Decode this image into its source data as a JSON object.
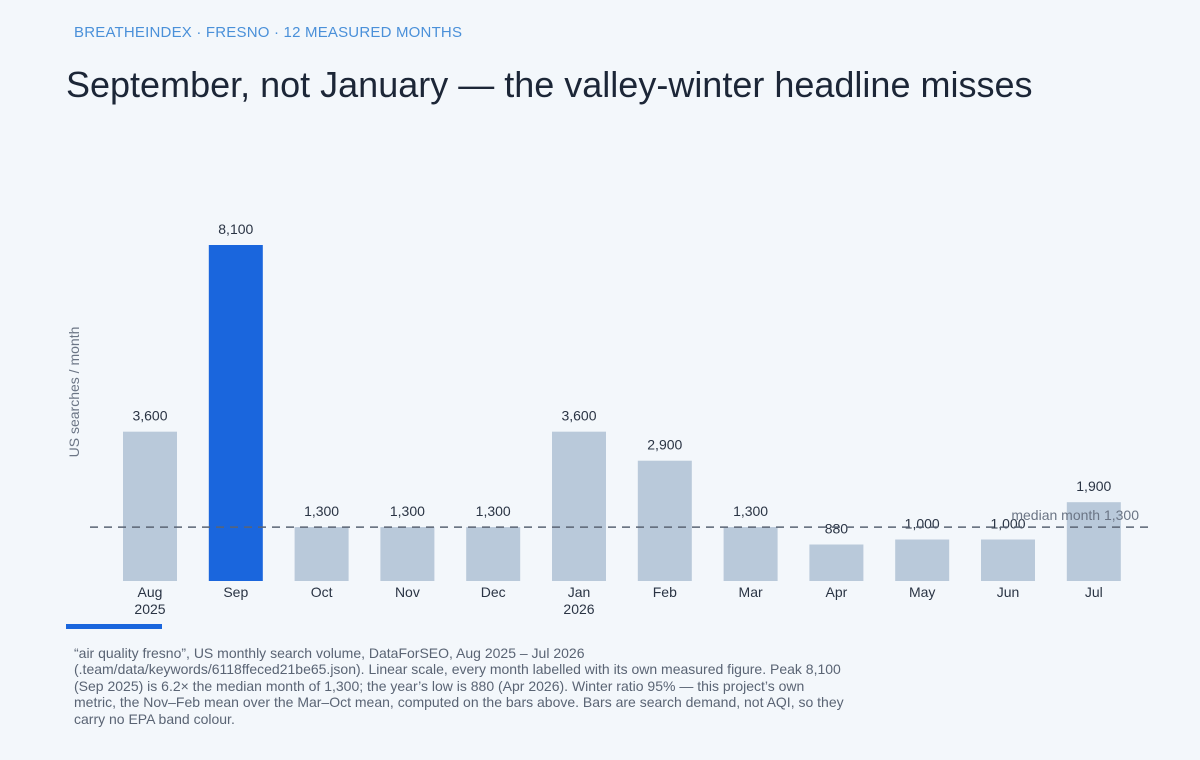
{
  "kicker": "BREATHEINDEX · FRESNO · 12 MEASURED MONTHS",
  "title": "September, not January — the valley-winter headline misses",
  "colors": {
    "highlight": "#1a66dd",
    "bar": "#b9c9da",
    "median_line": "#5a6474",
    "accent": "#1a66dd"
  },
  "chart_data": {
    "type": "bar",
    "categories": [
      "Aug",
      "Sep",
      "Oct",
      "Nov",
      "Dec",
      "Jan",
      "Feb",
      "Mar",
      "Apr",
      "May",
      "Jun",
      "Jul"
    ],
    "year_labels": [
      "2025",
      "",
      "",
      "",
      "",
      "2026",
      "",
      "",
      "",
      "",
      "",
      ""
    ],
    "values": [
      3600,
      8100,
      1300,
      1300,
      1300,
      3600,
      2900,
      1300,
      880,
      1000,
      1000,
      1900
    ],
    "data_labels": [
      "3,600",
      "8,100",
      "1,300",
      "1,300",
      "1,300",
      "3,600",
      "2,900",
      "1,300",
      "880",
      "1,000",
      "1,000",
      "1,900"
    ],
    "highlight_index": 1,
    "ylabel": "US searches / month",
    "ylim": [
      0,
      8100
    ],
    "scale": "linear",
    "grid": false,
    "median": {
      "value": 1300,
      "label": "median month  1,300"
    }
  },
  "footnote": [
    "“air quality fresno”, US monthly search volume, DataForSEO, Aug 2025 – Jul 2026",
    "(.team/data/keywords/6118ffeced21be65.json). Linear scale, every month labelled with its own measured figure. Peak 8,100",
    "(Sep 2025) is 6.2× the median month of 1,300; the year’s low is 880 (Apr 2026). Winter ratio 95% — this project’s own",
    "metric, the Nov–Feb mean over the Mar–Oct mean, computed on the bars above. Bars are search demand, not AQI, so they",
    "carry no EPA band colour."
  ]
}
